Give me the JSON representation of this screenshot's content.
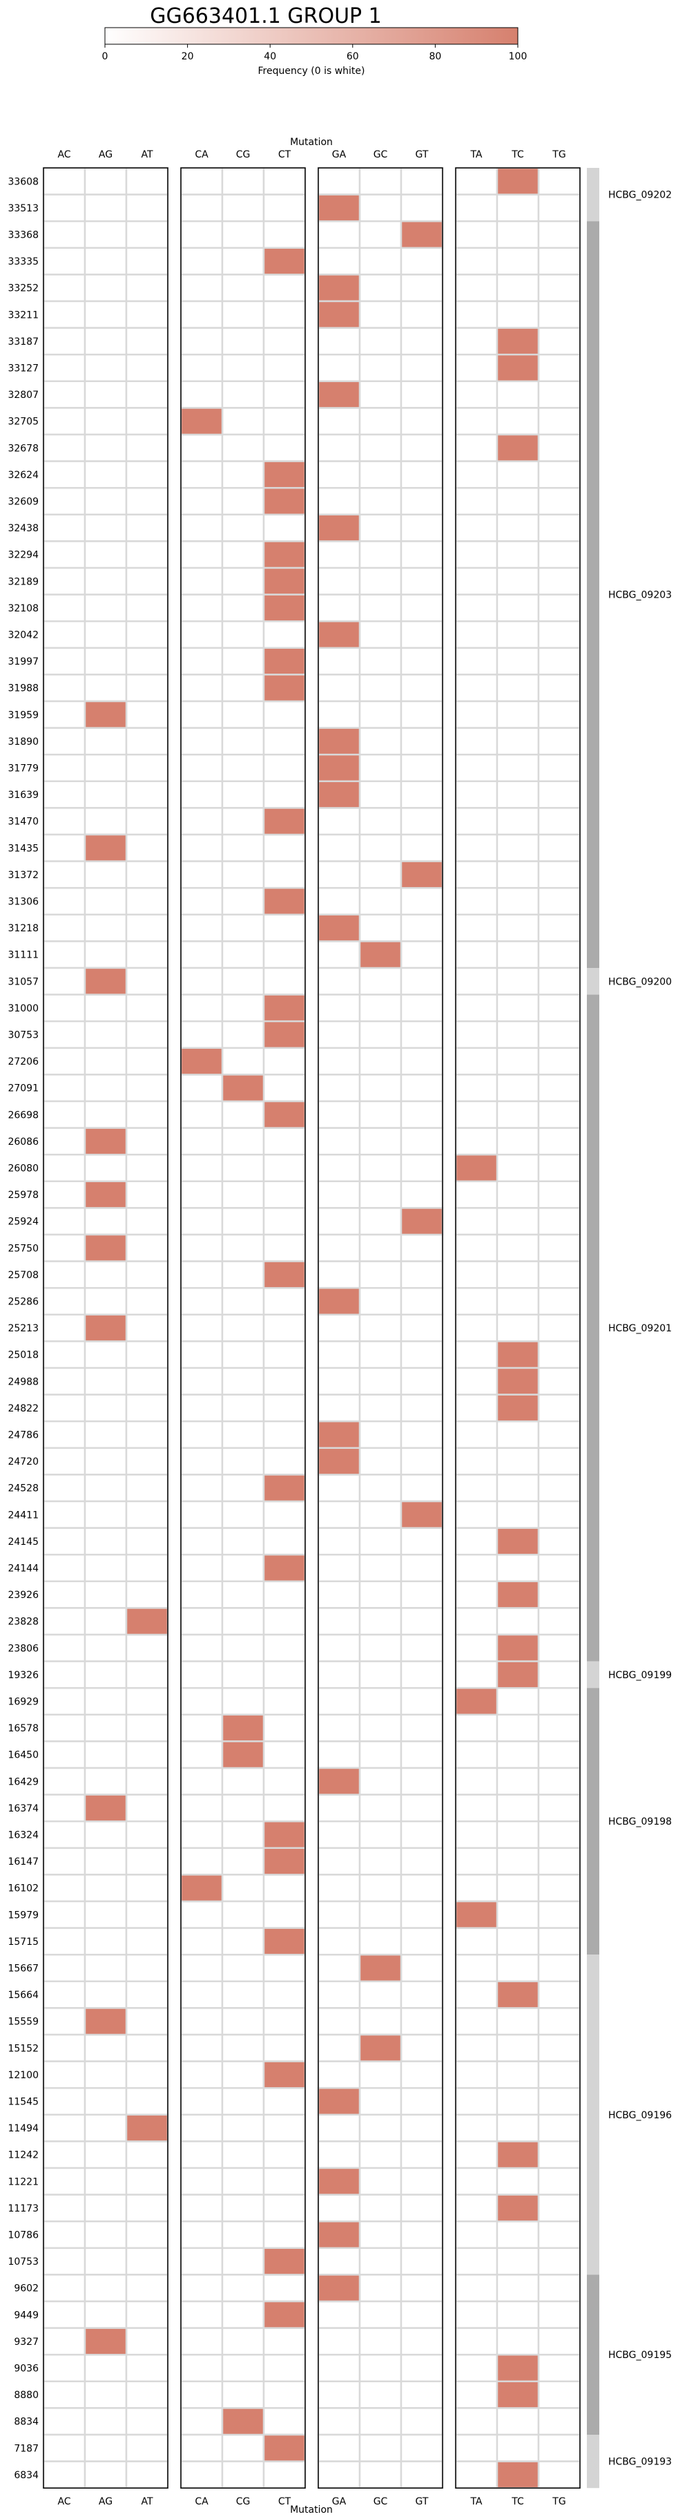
{
  "chart_data": {
    "type": "heatmap",
    "title": "GG663401.1 GROUP 1",
    "colorbar": {
      "label": "Frequency (0 is white)",
      "range": [
        0,
        100
      ],
      "ticks": [
        "0",
        "20",
        "40",
        "60",
        "80",
        "100"
      ],
      "color_low": "#ffffff",
      "color_high": "#d6806e"
    },
    "xlabel_top": "Mutation",
    "xlabel_bottom": "Mutation",
    "column_groups": [
      [
        "AC",
        "AG",
        "AT"
      ],
      [
        "CA",
        "CG",
        "CT"
      ],
      [
        "GA",
        "GC",
        "GT"
      ],
      [
        "TA",
        "TC",
        "TG"
      ]
    ],
    "rows": [
      "33608",
      "33513",
      "33368",
      "33335",
      "33252",
      "33211",
      "33187",
      "33127",
      "32807",
      "32705",
      "32678",
      "32624",
      "32609",
      "32438",
      "32294",
      "32189",
      "32108",
      "32042",
      "31997",
      "31988",
      "31959",
      "31890",
      "31779",
      "31639",
      "31470",
      "31435",
      "31372",
      "31306",
      "31218",
      "31111",
      "31057",
      "31000",
      "30753",
      "27206",
      "27091",
      "26698",
      "26086",
      "26080",
      "25978",
      "25924",
      "25750",
      "25708",
      "25286",
      "25213",
      "25018",
      "24988",
      "24822",
      "24786",
      "24720",
      "24528",
      "24411",
      "24145",
      "24144",
      "23926",
      "23828",
      "23806",
      "19326",
      "16929",
      "16578",
      "16450",
      "16429",
      "16374",
      "16324",
      "16147",
      "16102",
      "15979",
      "15715",
      "15667",
      "15664",
      "15559",
      "15152",
      "12100",
      "11545",
      "11494",
      "11242",
      "11221",
      "11173",
      "10786",
      "10753",
      "9602",
      "9449",
      "9327",
      "9036",
      "8880",
      "8834",
      "7187",
      "6834"
    ],
    "filled_cell_value": 100,
    "cells": [
      [
        "33608",
        "TC"
      ],
      [
        "33513",
        "GA"
      ],
      [
        "33368",
        "GT"
      ],
      [
        "33335",
        "CT"
      ],
      [
        "33252",
        "GA"
      ],
      [
        "33211",
        "GA"
      ],
      [
        "33187",
        "TC"
      ],
      [
        "33127",
        "TC"
      ],
      [
        "32807",
        "GA"
      ],
      [
        "32705",
        "CA"
      ],
      [
        "32678",
        "TC"
      ],
      [
        "32624",
        "CT"
      ],
      [
        "32609",
        "CT"
      ],
      [
        "32438",
        "GA"
      ],
      [
        "32294",
        "CT"
      ],
      [
        "32189",
        "CT"
      ],
      [
        "32108",
        "CT"
      ],
      [
        "32042",
        "GA"
      ],
      [
        "31997",
        "CT"
      ],
      [
        "31988",
        "CT"
      ],
      [
        "31959",
        "AG"
      ],
      [
        "31890",
        "GA"
      ],
      [
        "31779",
        "GA"
      ],
      [
        "31639",
        "GA"
      ],
      [
        "31470",
        "CT"
      ],
      [
        "31435",
        "AG"
      ],
      [
        "31372",
        "GT"
      ],
      [
        "31306",
        "CT"
      ],
      [
        "31218",
        "GA"
      ],
      [
        "31111",
        "GC"
      ],
      [
        "31057",
        "AG"
      ],
      [
        "31000",
        "CT"
      ],
      [
        "30753",
        "CT"
      ],
      [
        "27206",
        "CA"
      ],
      [
        "27091",
        "CG"
      ],
      [
        "26698",
        "CT"
      ],
      [
        "26086",
        "AG"
      ],
      [
        "26080",
        "TA"
      ],
      [
        "25978",
        "AG"
      ],
      [
        "25924",
        "GT"
      ],
      [
        "25750",
        "AG"
      ],
      [
        "25708",
        "CT"
      ],
      [
        "25286",
        "GA"
      ],
      [
        "25213",
        "AG"
      ],
      [
        "25018",
        "TC"
      ],
      [
        "24988",
        "TC"
      ],
      [
        "24822",
        "TC"
      ],
      [
        "24786",
        "GA"
      ],
      [
        "24720",
        "GA"
      ],
      [
        "24528",
        "CT"
      ],
      [
        "24411",
        "GT"
      ],
      [
        "24145",
        "TC"
      ],
      [
        "24144",
        "CT"
      ],
      [
        "23926",
        "TC"
      ],
      [
        "23828",
        "AT"
      ],
      [
        "23806",
        "TC"
      ],
      [
        "19326",
        "TC"
      ],
      [
        "16929",
        "TA"
      ],
      [
        "16578",
        "CG"
      ],
      [
        "16450",
        "CG"
      ],
      [
        "16429",
        "GA"
      ],
      [
        "16374",
        "AG"
      ],
      [
        "16324",
        "CT"
      ],
      [
        "16147",
        "CT"
      ],
      [
        "16102",
        "CA"
      ],
      [
        "15979",
        "TA"
      ],
      [
        "15715",
        "CT"
      ],
      [
        "15667",
        "GC"
      ],
      [
        "15664",
        "TC"
      ],
      [
        "15559",
        "AG"
      ],
      [
        "15152",
        "GC"
      ],
      [
        "12100",
        "CT"
      ],
      [
        "11545",
        "GA"
      ],
      [
        "11494",
        "AT"
      ],
      [
        "11242",
        "TC"
      ],
      [
        "11221",
        "GA"
      ],
      [
        "11173",
        "TC"
      ],
      [
        "10786",
        "GA"
      ],
      [
        "10753",
        "CT"
      ],
      [
        "9602",
        "GA"
      ],
      [
        "9449",
        "CT"
      ],
      [
        "9327",
        "AG"
      ],
      [
        "9036",
        "TC"
      ],
      [
        "8880",
        "TC"
      ],
      [
        "8834",
        "CG"
      ],
      [
        "7187",
        "CT"
      ],
      [
        "6834",
        "TC"
      ]
    ],
    "row_groups": [
      {
        "label": "HCBG_09202",
        "first_row": "33608",
        "last_row": "33513",
        "shade": "light"
      },
      {
        "label": "HCBG_09203",
        "first_row": "33368",
        "last_row": "31111",
        "shade": "dark"
      },
      {
        "label": "HCBG_09200",
        "first_row": "31057",
        "last_row": "31057",
        "shade": "light"
      },
      {
        "label": "HCBG_09201",
        "first_row": "31000",
        "last_row": "23806",
        "shade": "dark"
      },
      {
        "label": "HCBG_09199",
        "first_row": "19326",
        "last_row": "19326",
        "shade": "light"
      },
      {
        "label": "HCBG_09198",
        "first_row": "16929",
        "last_row": "15715",
        "shade": "dark"
      },
      {
        "label": "HCBG_09196",
        "first_row": "15667",
        "last_row": "10753",
        "shade": "light"
      },
      {
        "label": "HCBG_09195",
        "first_row": "9602",
        "last_row": "8834",
        "shade": "dark"
      },
      {
        "label": "HCBG_09193",
        "first_row": "7187",
        "last_row": "6834",
        "shade": "light"
      }
    ],
    "colors": {
      "filled": "#d6806e",
      "grid": "#d9d9d9",
      "panel_border": "#000000",
      "group_light": "#d4d4d4",
      "group_dark": "#ababab"
    }
  }
}
